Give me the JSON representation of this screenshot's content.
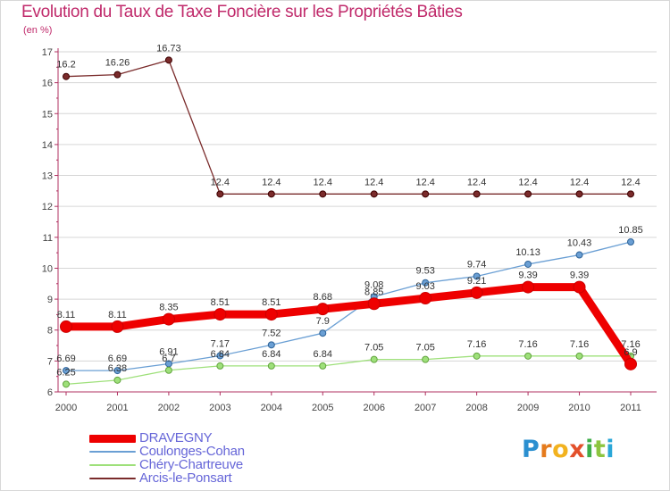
{
  "chart_data": {
    "type": "line",
    "title": "Evolution du Taux de Taxe Foncière sur les Propriétés Bâties",
    "subtitle": "(en %)",
    "categories": [
      "2000",
      "2001",
      "2002",
      "2003",
      "2004",
      "2005",
      "2006",
      "2007",
      "2008",
      "2009",
      "2010",
      "2011"
    ],
    "ylim": [
      6,
      17
    ],
    "yticks": [
      "6",
      "7",
      "8",
      "9",
      "10",
      "11",
      "12",
      "13",
      "14",
      "15",
      "16",
      "17"
    ],
    "series": [
      {
        "name": "DRAVEGNY",
        "color": "#ee0000",
        "values": [
          8.11,
          8.11,
          8.35,
          8.51,
          8.51,
          8.68,
          8.85,
          9.03,
          9.21,
          9.39,
          9.39,
          6.9
        ],
        "labels": [
          "8.11",
          "8.11",
          "8.35",
          "8.51",
          "8.51",
          "8.68",
          "8.85",
          "9.03",
          "9.21",
          "9.39",
          "9.39",
          "6.9"
        ]
      },
      {
        "name": "Coulonges-Cohan",
        "color": "#6a9fd4",
        "values": [
          6.69,
          6.69,
          6.91,
          7.17,
          7.52,
          7.9,
          9.08,
          9.53,
          9.74,
          10.13,
          10.43,
          10.85
        ],
        "labels": [
          "6.69",
          "6.69",
          "6.91",
          "7.17",
          "7.52",
          "7.9",
          "9.08",
          "9.53",
          "9.74",
          "10.13",
          "10.43",
          "10.85"
        ]
      },
      {
        "name": "Chéry-Chartreuve",
        "color": "#9ee07a",
        "values": [
          6.25,
          6.38,
          6.7,
          6.84,
          6.84,
          6.84,
          7.05,
          7.05,
          7.16,
          7.16,
          7.16,
          7.16
        ],
        "labels": [
          "6.25",
          "6.38",
          "6.7",
          "6.84",
          "6.84",
          "6.84",
          "7.05",
          "7.05",
          "7.16",
          "7.16",
          "7.16",
          "7.16"
        ]
      },
      {
        "name": "Arcis-le-Ponsart",
        "color": "#7a2b2b",
        "values": [
          16.2,
          16.26,
          16.73,
          12.4,
          12.4,
          12.4,
          12.4,
          12.4,
          12.4,
          12.4,
          12.4,
          12.4
        ],
        "labels": [
          "16.2",
          "16.26",
          "16.73",
          "12.4",
          "12.4",
          "12.4",
          "12.4",
          "12.4",
          "12.4",
          "12.4",
          "12.4",
          "12.4"
        ]
      }
    ],
    "legend_position": "bottom-left"
  },
  "legend": {
    "items": [
      {
        "label": "DRAVEGNY",
        "color": "#ee0000"
      },
      {
        "label": "Coulonges-Cohan",
        "color": "#6a9fd4"
      },
      {
        "label": "Chéry-Chartreuve",
        "color": "#9ee07a"
      },
      {
        "label": "Arcis-le-Ponsart",
        "color": "#7a2b2b"
      }
    ]
  },
  "logo": {
    "letters": [
      "P",
      "r",
      "o",
      "x",
      "i",
      "t",
      "i"
    ]
  }
}
